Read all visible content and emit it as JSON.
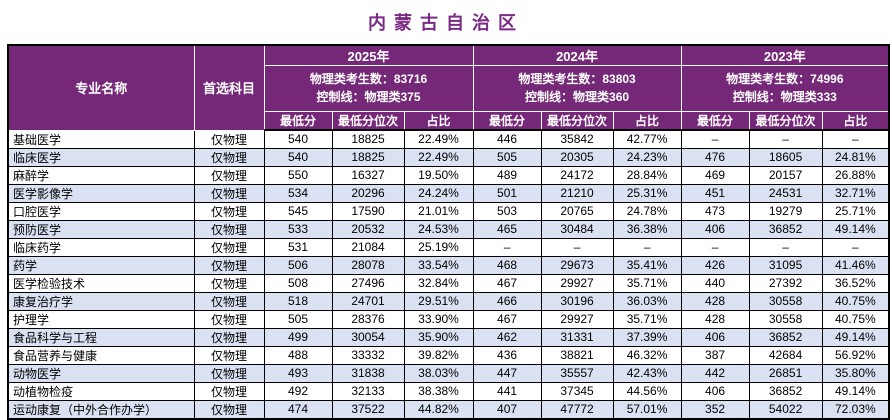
{
  "title": "内蒙古自治区",
  "colors": {
    "header_bg": "#762878",
    "title": "#7B2A85",
    "alt_row": "#D9E1F2",
    "border": "#000000",
    "header_text": "#FFFFFF"
  },
  "table": {
    "corner_headers": {
      "major": "专业名称",
      "subject": "首选科目"
    },
    "sub_headers": [
      "最低分",
      "最低分位次",
      "占比"
    ],
    "years": [
      {
        "label": "2025年",
        "info1": "物理类考生数：83716",
        "info2": "控制线：物理类375"
      },
      {
        "label": "2024年",
        "info1": "物理类考生数：83803",
        "info2": "控制线：物理类360"
      },
      {
        "label": "2023年",
        "info1": "物理类考生数：74996",
        "info2": "控制线：物理类333"
      }
    ],
    "rows": [
      {
        "major": "基础医学",
        "subject": "仅物理",
        "y2025": [
          "540",
          "18825",
          "22.49%"
        ],
        "y2024": [
          "446",
          "35842",
          "42.77%"
        ],
        "y2023": [
          "–",
          "–",
          "–"
        ]
      },
      {
        "major": "临床医学",
        "subject": "仅物理",
        "y2025": [
          "540",
          "18825",
          "22.49%"
        ],
        "y2024": [
          "505",
          "20305",
          "24.23%"
        ],
        "y2023": [
          "476",
          "18605",
          "24.81%"
        ]
      },
      {
        "major": "麻醉学",
        "subject": "仅物理",
        "y2025": [
          "550",
          "16327",
          "19.50%"
        ],
        "y2024": [
          "489",
          "24172",
          "28.84%"
        ],
        "y2023": [
          "469",
          "20157",
          "26.88%"
        ]
      },
      {
        "major": "医学影像学",
        "subject": "仅物理",
        "y2025": [
          "534",
          "20296",
          "24.24%"
        ],
        "y2024": [
          "501",
          "21210",
          "25.31%"
        ],
        "y2023": [
          "451",
          "24531",
          "32.71%"
        ]
      },
      {
        "major": "口腔医学",
        "subject": "仅物理",
        "y2025": [
          "545",
          "17590",
          "21.01%"
        ],
        "y2024": [
          "503",
          "20765",
          "24.78%"
        ],
        "y2023": [
          "473",
          "19279",
          "25.71%"
        ]
      },
      {
        "major": "预防医学",
        "subject": "仅物理",
        "y2025": [
          "533",
          "20532",
          "24.53%"
        ],
        "y2024": [
          "465",
          "30484",
          "36.38%"
        ],
        "y2023": [
          "406",
          "36852",
          "49.14%"
        ]
      },
      {
        "major": "临床药学",
        "subject": "仅物理",
        "y2025": [
          "531",
          "21084",
          "25.19%"
        ],
        "y2024": [
          "–",
          "–",
          "–"
        ],
        "y2023": [
          "–",
          "–",
          "–"
        ]
      },
      {
        "major": "药学",
        "subject": "仅物理",
        "y2025": [
          "506",
          "28078",
          "33.54%"
        ],
        "y2024": [
          "468",
          "29673",
          "35.41%"
        ],
        "y2023": [
          "426",
          "31095",
          "41.46%"
        ]
      },
      {
        "major": "医学检验技术",
        "subject": "仅物理",
        "y2025": [
          "508",
          "27496",
          "32.84%"
        ],
        "y2024": [
          "467",
          "29927",
          "35.71%"
        ],
        "y2023": [
          "440",
          "27392",
          "36.52%"
        ]
      },
      {
        "major": "康复治疗学",
        "subject": "仅物理",
        "y2025": [
          "518",
          "24701",
          "29.51%"
        ],
        "y2024": [
          "466",
          "30196",
          "36.03%"
        ],
        "y2023": [
          "428",
          "30558",
          "40.75%"
        ]
      },
      {
        "major": "护理学",
        "subject": "仅物理",
        "y2025": [
          "505",
          "28376",
          "33.90%"
        ],
        "y2024": [
          "467",
          "29927",
          "35.71%"
        ],
        "y2023": [
          "428",
          "30558",
          "40.75%"
        ]
      },
      {
        "major": "食品科学与工程",
        "subject": "仅物理",
        "y2025": [
          "499",
          "30054",
          "35.90%"
        ],
        "y2024": [
          "462",
          "31331",
          "37.39%"
        ],
        "y2023": [
          "406",
          "36852",
          "49.14%"
        ]
      },
      {
        "major": "食品营养与健康",
        "subject": "仅物理",
        "y2025": [
          "488",
          "33332",
          "39.82%"
        ],
        "y2024": [
          "436",
          "38821",
          "46.32%"
        ],
        "y2023": [
          "387",
          "42684",
          "56.92%"
        ]
      },
      {
        "major": "动物医学",
        "subject": "仅物理",
        "y2025": [
          "493",
          "31838",
          "38.03%"
        ],
        "y2024": [
          "447",
          "35557",
          "42.43%"
        ],
        "y2023": [
          "442",
          "26851",
          "35.80%"
        ]
      },
      {
        "major": "动植物检疫",
        "subject": "仅物理",
        "y2025": [
          "492",
          "32133",
          "38.38%"
        ],
        "y2024": [
          "441",
          "37345",
          "44.56%"
        ],
        "y2023": [
          "406",
          "36852",
          "49.14%"
        ]
      },
      {
        "major": "运动康复（中外合作办学）",
        "subject": "仅物理",
        "y2025": [
          "474",
          "37522",
          "44.82%"
        ],
        "y2024": [
          "407",
          "47772",
          "57.01%"
        ],
        "y2023": [
          "352",
          "54022",
          "72.03%"
        ]
      }
    ]
  }
}
